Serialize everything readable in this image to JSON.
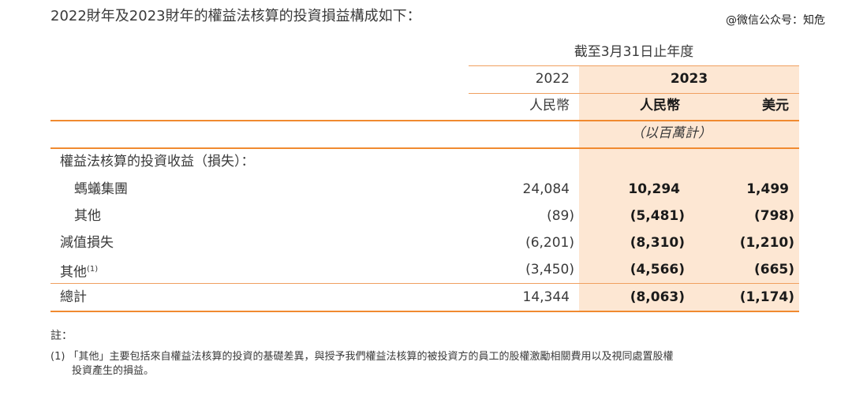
{
  "intro": "2022財年及2023財年的權益法核算的投資損益構成如下：",
  "watermark": "@微信公众号：知危",
  "header": {
    "period": "截至3月31日止年度",
    "years": [
      "2022",
      "2023"
    ],
    "currencies": [
      "人民幣",
      "人民幣",
      "美元"
    ],
    "unit": "（以百萬計）"
  },
  "rows": [
    {
      "label": "權益法核算的投資收益（損失）：",
      "v2022": "",
      "v2023": "",
      "usd": "",
      "indent": 0
    },
    {
      "label": "螞蟻集團",
      "v2022": "24,084",
      "v2023": "10,294",
      "usd": "1,499",
      "indent": 1
    },
    {
      "label": "其他",
      "v2022": "(89)",
      "v2023": "(5,481)",
      "usd": "(798)",
      "indent": 1
    },
    {
      "label": "減值損失",
      "v2022": "(6,201)",
      "v2023": "(8,310)",
      "usd": "(1,210)",
      "indent": 0
    },
    {
      "label": "其他",
      "sup": "(1)",
      "v2022": "(3,450)",
      "v2023": "(4,566)",
      "usd": "(665)",
      "indent": 0
    },
    {
      "label": "總計",
      "v2022": "14,344",
      "v2023": "(8,063)",
      "usd": "(1,174)",
      "indent": 0
    }
  ],
  "notes": {
    "title": "註：",
    "line1": "(1) 「其他」主要包括來自權益法核算的投資的基礎差異，與授予我們權益法核算的被投資方的員工的股權激勵相關費用以及視同處置股權",
    "line2": "投資產生的損益。"
  }
}
